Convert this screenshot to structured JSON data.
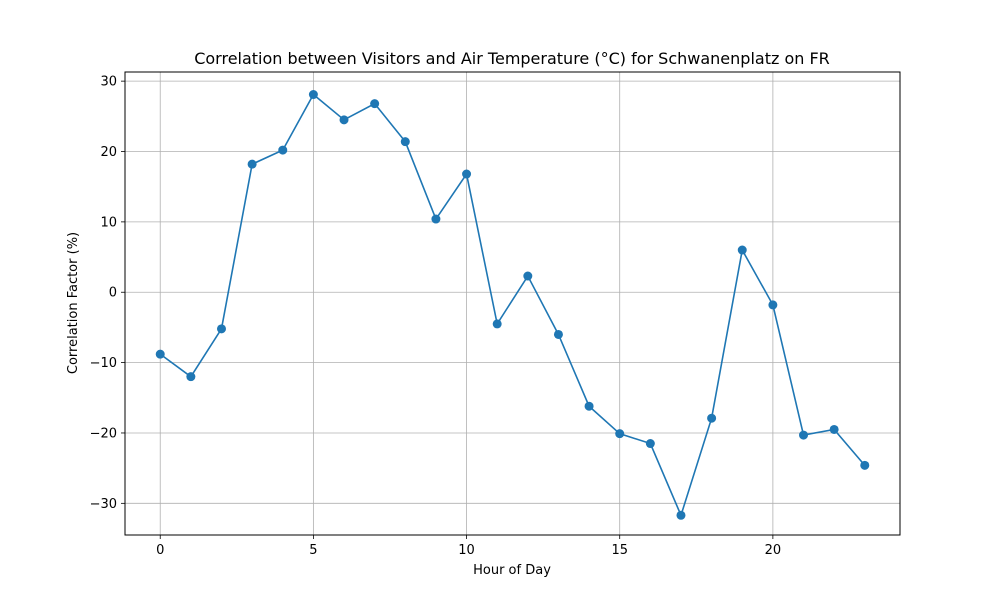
{
  "chart_data": {
    "type": "line",
    "title": "Correlation between Visitors and Air Temperature (°C) for Schwanenplatz on FR",
    "xlabel": "Hour of Day",
    "ylabel": "Correlation Factor (%)",
    "xlim": [
      -1.15,
      24.15
    ],
    "ylim": [
      -34.5,
      31.3
    ],
    "xticks": [
      0,
      5,
      10,
      15,
      20
    ],
    "yticks": [
      -30,
      -20,
      -10,
      0,
      10,
      20,
      30
    ],
    "grid": true,
    "color": "#1f77b4",
    "x": [
      0,
      1,
      2,
      3,
      4,
      5,
      6,
      7,
      8,
      9,
      10,
      11,
      12,
      13,
      14,
      15,
      16,
      17,
      18,
      19,
      20,
      21,
      22,
      23
    ],
    "values": [
      -8.8,
      -12.0,
      -5.2,
      18.2,
      20.2,
      28.1,
      24.5,
      26.8,
      21.4,
      10.4,
      16.8,
      -4.5,
      2.3,
      -6.0,
      -16.2,
      -20.1,
      -21.5,
      -31.7,
      -17.9,
      6.0,
      -1.8,
      -20.3,
      -19.5,
      -24.6
    ]
  }
}
